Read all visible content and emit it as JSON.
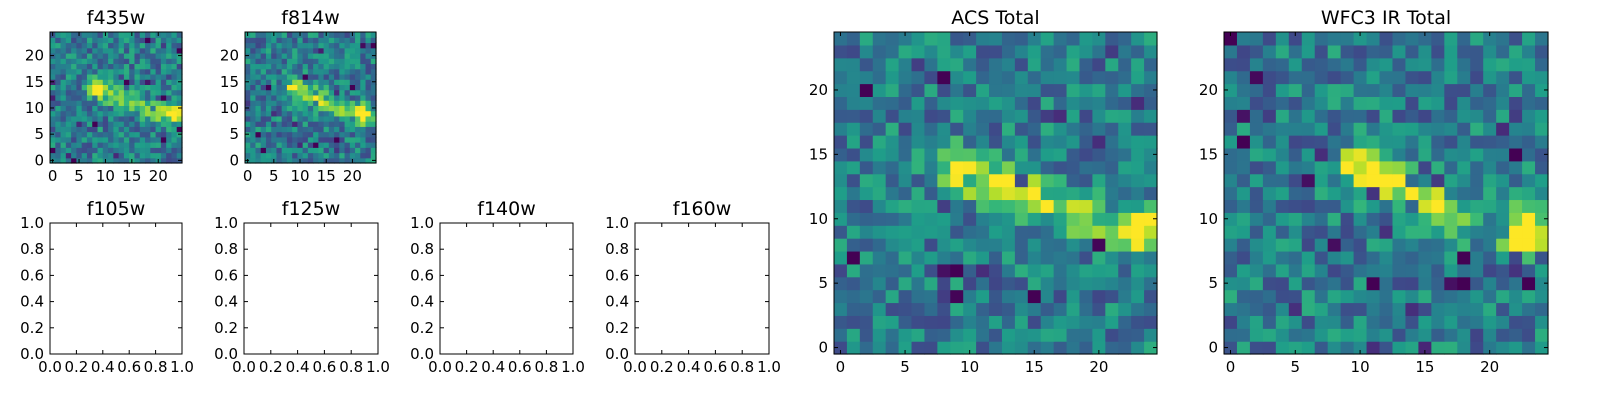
{
  "chart_data": [
    {
      "type": "heatmap",
      "title": "f435w",
      "xticks": [
        "0",
        "5",
        "10",
        "15",
        "20"
      ],
      "yticks": [
        "0",
        "5",
        "10",
        "15",
        "20"
      ],
      "xlim": [
        -0.5,
        24.5
      ],
      "ylim": [
        -0.5,
        24.5
      ],
      "grid": false,
      "colormap": "viridis",
      "features": [
        {
          "kind": "streak",
          "from": [
            8,
            14
          ],
          "to": [
            20,
            9
          ],
          "intensity": 0.55
        },
        {
          "kind": "blob",
          "at": [
            23,
            9
          ],
          "intensity": 0.7
        }
      ]
    },
    {
      "type": "heatmap",
      "title": "f814w",
      "xticks": [
        "0",
        "5",
        "10",
        "15",
        "20"
      ],
      "yticks": [
        "0",
        "5",
        "10",
        "15",
        "20"
      ],
      "xlim": [
        -0.5,
        24.5
      ],
      "ylim": [
        -0.5,
        24.5
      ],
      "grid": false,
      "colormap": "viridis",
      "features": [
        {
          "kind": "streak",
          "from": [
            9,
            14
          ],
          "to": [
            18,
            10
          ],
          "intensity": 0.55
        },
        {
          "kind": "blob",
          "at": [
            22,
            9
          ],
          "intensity": 0.75
        }
      ]
    },
    {
      "type": "empty",
      "title": "f105w",
      "xticks": [
        "0.0",
        "0.2",
        "0.4",
        "0.6",
        "0.8",
        "1.0"
      ],
      "yticks": [
        "0.0",
        "0.2",
        "0.4",
        "0.6",
        "0.8",
        "1.0"
      ],
      "xlim": [
        0,
        1
      ],
      "ylim": [
        0,
        1
      ]
    },
    {
      "type": "empty",
      "title": "f125w",
      "xticks": [
        "0.0",
        "0.2",
        "0.4",
        "0.6",
        "0.8",
        "1.0"
      ],
      "yticks": [
        "0.0",
        "0.2",
        "0.4",
        "0.6",
        "0.8",
        "1.0"
      ],
      "xlim": [
        0,
        1
      ],
      "ylim": [
        0,
        1
      ]
    },
    {
      "type": "empty",
      "title": "f140w",
      "xticks": [
        "0.0",
        "0.2",
        "0.4",
        "0.6",
        "0.8",
        "1.0"
      ],
      "yticks": [
        "0.0",
        "0.2",
        "0.4",
        "0.6",
        "0.8",
        "1.0"
      ],
      "xlim": [
        0,
        1
      ],
      "ylim": [
        0,
        1
      ]
    },
    {
      "type": "empty",
      "title": "f160w",
      "xticks": [
        "0.0",
        "0.2",
        "0.4",
        "0.6",
        "0.8",
        "1.0"
      ],
      "yticks": [
        "0.0",
        "0.2",
        "0.4",
        "0.6",
        "0.8",
        "1.0"
      ],
      "xlim": [
        0,
        1
      ],
      "ylim": [
        0,
        1
      ]
    },
    {
      "type": "heatmap",
      "title": "ACS Total",
      "xticks": [
        "0",
        "5",
        "10",
        "15",
        "20"
      ],
      "yticks": [
        "0",
        "5",
        "10",
        "15",
        "20"
      ],
      "xlim": [
        -0.5,
        24.5
      ],
      "ylim": [
        -0.5,
        24.5
      ],
      "grid": false,
      "colormap": "viridis",
      "features": [
        {
          "kind": "streak",
          "from": [
            9,
            14
          ],
          "to": [
            19,
            10
          ],
          "intensity": 0.6
        },
        {
          "kind": "blob",
          "at": [
            23,
            9
          ],
          "intensity": 0.8
        }
      ]
    },
    {
      "type": "heatmap",
      "title": "WFC3 IR Total",
      "xticks": [
        "0",
        "5",
        "10",
        "15",
        "20"
      ],
      "yticks": [
        "0",
        "5",
        "10",
        "15",
        "20"
      ],
      "xlim": [
        -0.5,
        24.5
      ],
      "ylim": [
        -0.5,
        24.5
      ],
      "grid": false,
      "colormap": "viridis",
      "features": [
        {
          "kind": "streak",
          "from": [
            10,
            14
          ],
          "to": [
            18,
            10
          ],
          "intensity": 0.6
        },
        {
          "kind": "blob",
          "at": [
            23,
            9
          ],
          "intensity": 0.85
        }
      ]
    }
  ]
}
